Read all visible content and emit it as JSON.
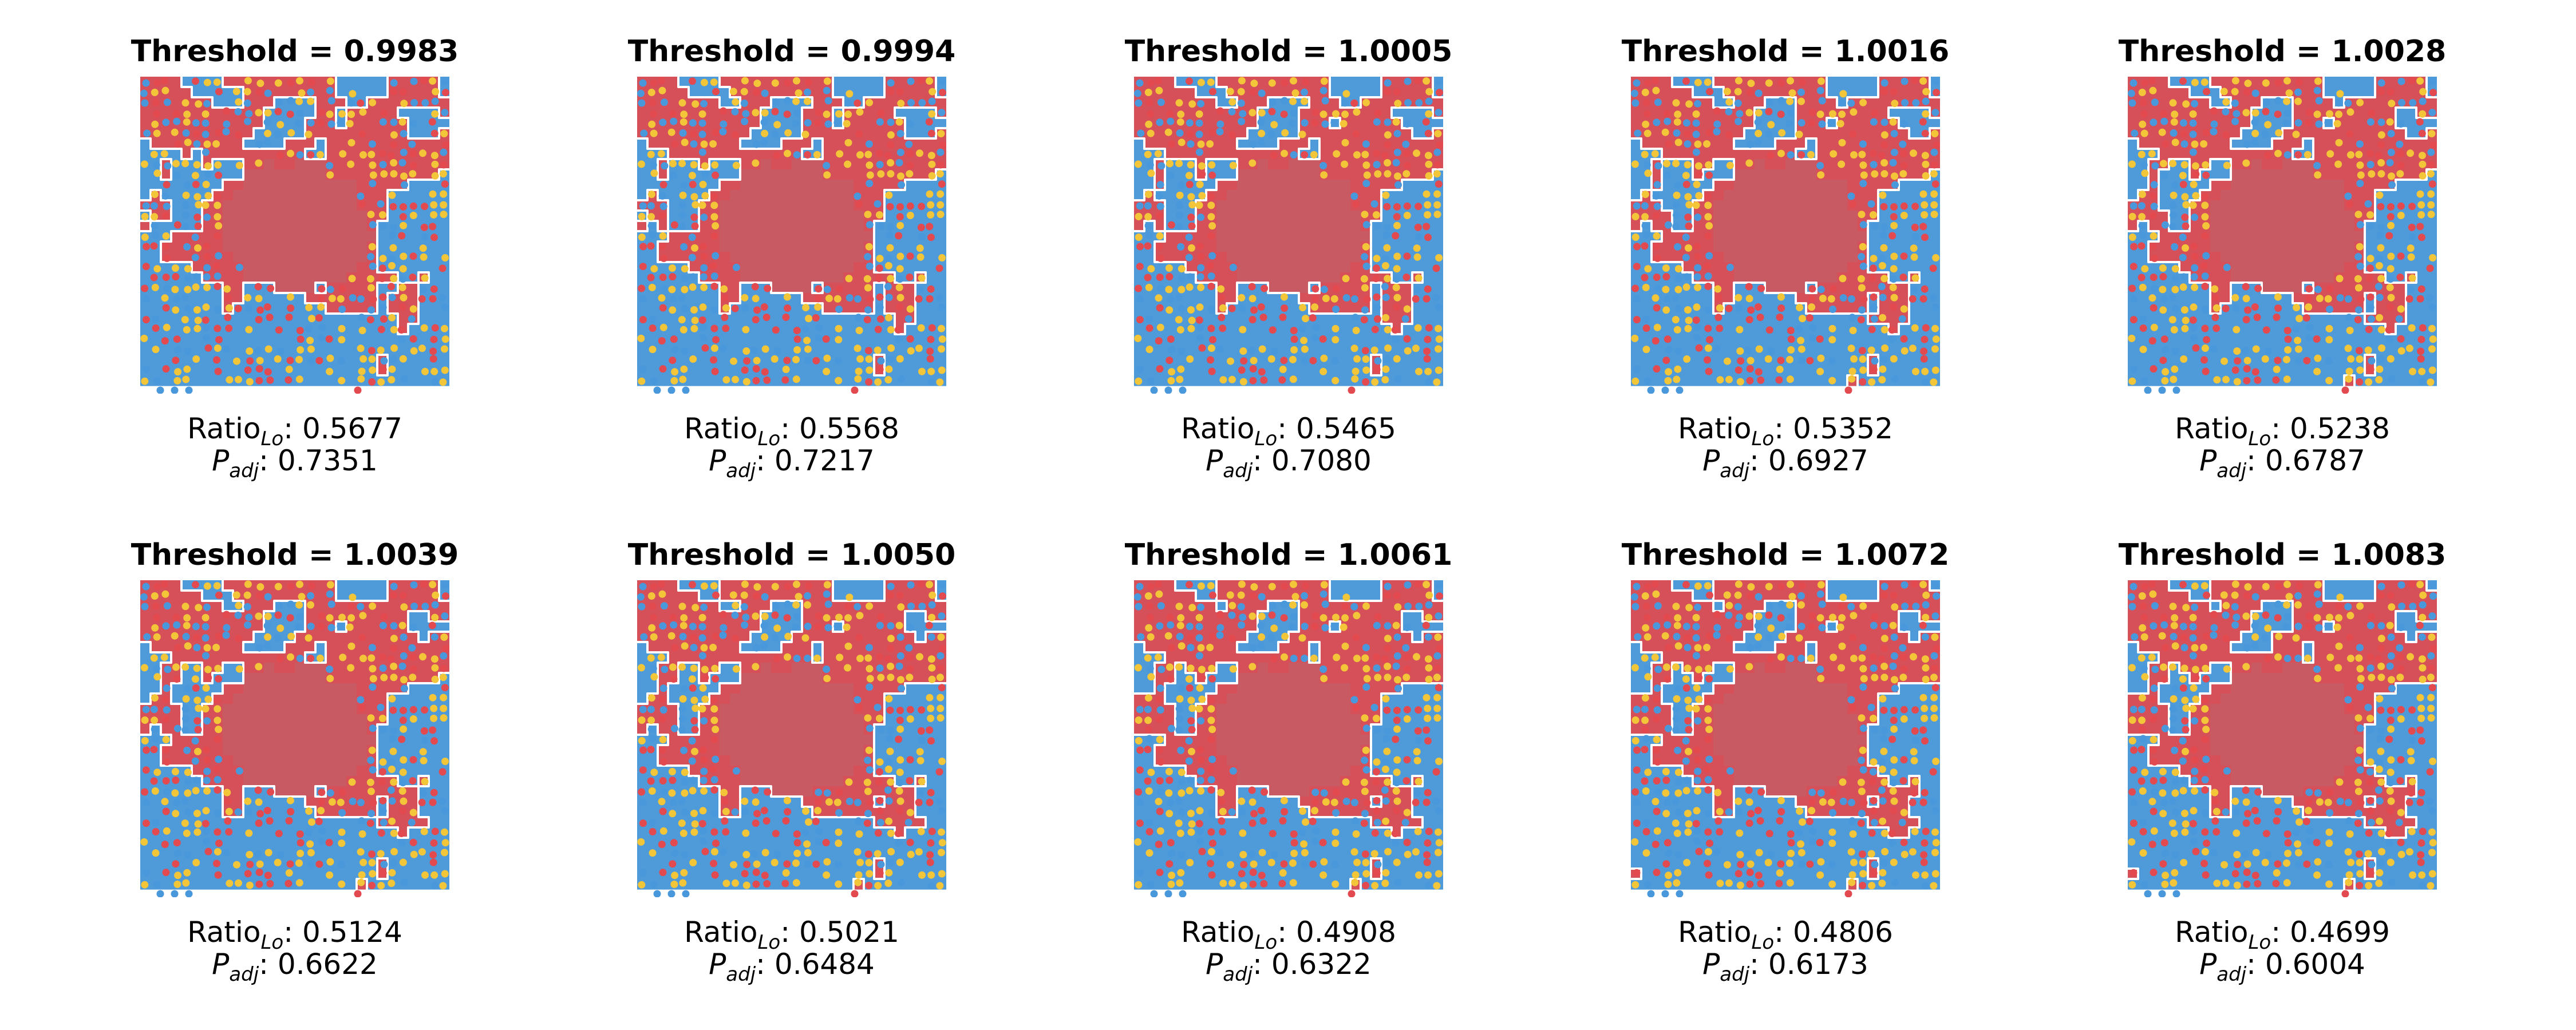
{
  "chart_data": {
    "type": "heatmap",
    "layout": {
      "rows": 2,
      "cols": 5
    },
    "colors": {
      "domain_a": "#d65059",
      "domain_b": "#4f9ad8",
      "spot_red": "#e24a50",
      "spot_blue": "#4a98dc",
      "spot_yellow": "#f3c63a",
      "core": "#c85a64",
      "boundary": "#ffffff"
    },
    "labels": {
      "threshold_prefix": "Threshold = ",
      "ratio_label": "Ratio",
      "ratio_sub": "Lo",
      "padj_label": "P",
      "padj_sub": "adj",
      "sep": ": "
    },
    "panels": [
      {
        "threshold": "0.9983",
        "ratio_lo": "0.5677",
        "p_adj": "0.7351"
      },
      {
        "threshold": "0.9994",
        "ratio_lo": "0.5568",
        "p_adj": "0.7217"
      },
      {
        "threshold": "1.0005",
        "ratio_lo": "0.5465",
        "p_adj": "0.7080"
      },
      {
        "threshold": "1.0016",
        "ratio_lo": "0.5352",
        "p_adj": "0.6927"
      },
      {
        "threshold": "1.0028",
        "ratio_lo": "0.5238",
        "p_adj": "0.6787"
      },
      {
        "threshold": "1.0039",
        "ratio_lo": "0.5124",
        "p_adj": "0.6622"
      },
      {
        "threshold": "1.0050",
        "ratio_lo": "0.5021",
        "p_adj": "0.6484"
      },
      {
        "threshold": "1.0061",
        "ratio_lo": "0.4908",
        "p_adj": "0.6322"
      },
      {
        "threshold": "1.0072",
        "ratio_lo": "0.4806",
        "p_adj": "0.6173"
      },
      {
        "threshold": "1.0083",
        "ratio_lo": "0.4699",
        "p_adj": "0.6004"
      }
    ]
  }
}
